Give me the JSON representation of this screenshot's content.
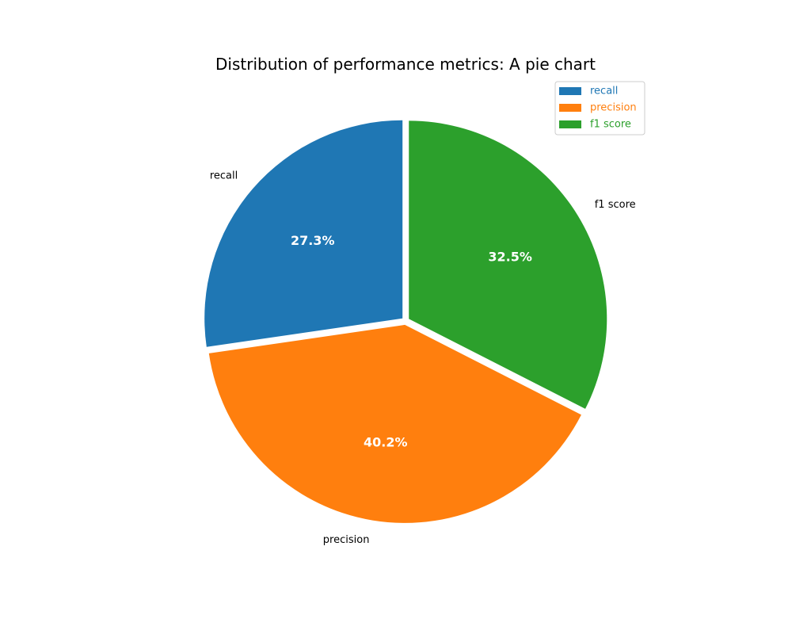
{
  "chart_data": {
    "type": "pie",
    "title": "Distribution of performance metrics: A pie chart",
    "labels": [
      "recall",
      "precision",
      "f1 score"
    ],
    "values": [
      27.3,
      40.2,
      32.5
    ],
    "percent_labels": [
      "27.3%",
      "40.2%",
      "32.5%"
    ],
    "colors": [
      "#1f77b4",
      "#ff7f0e",
      "#2ca02c"
    ],
    "start_angle_deg": 90,
    "direction": "counterclockwise",
    "exploded": true,
    "legend": {
      "position": "top-right",
      "entries": [
        "recall",
        "precision",
        "f1 score"
      ]
    }
  }
}
